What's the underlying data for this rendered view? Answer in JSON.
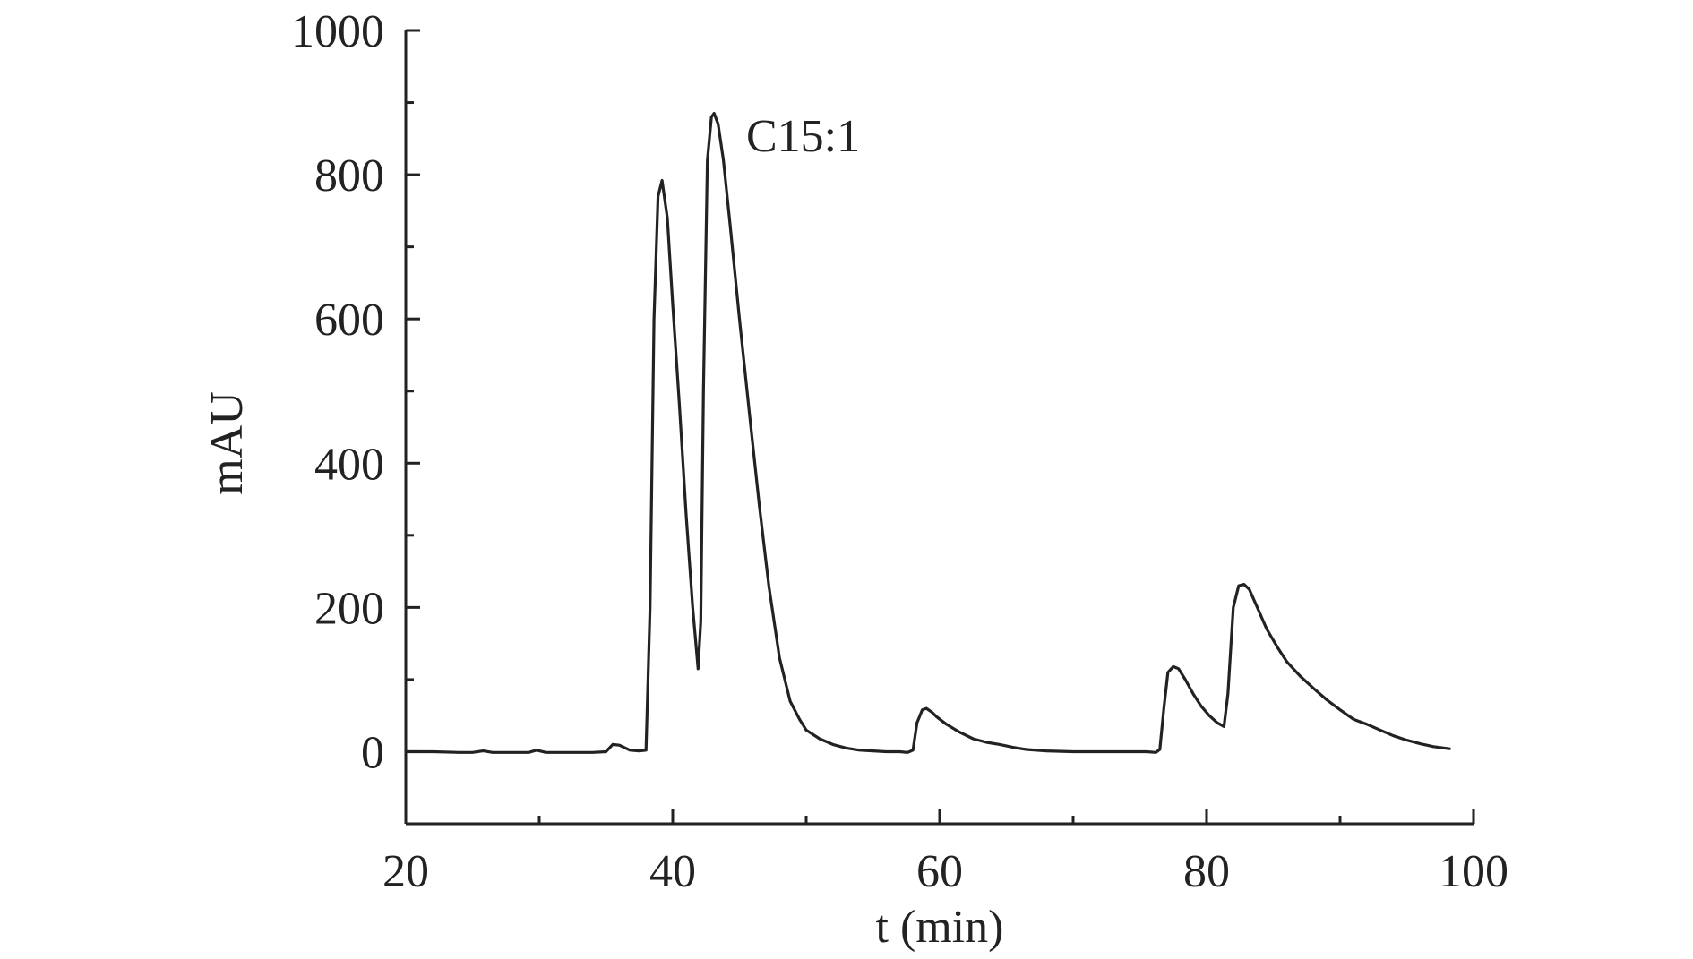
{
  "chart_data": {
    "type": "line",
    "xlabel": "t (min)",
    "ylabel": "mAU",
    "xlim": [
      20,
      100
    ],
    "ylim": [
      -100,
      1000
    ],
    "x_ticks": [
      20,
      40,
      60,
      80,
      100
    ],
    "x_minor_ticks": [
      30,
      50,
      70,
      90
    ],
    "y_ticks": [
      0,
      200,
      400,
      600,
      800,
      1000
    ],
    "y_minor_ticks": [
      -100,
      100,
      300,
      500,
      700,
      900
    ],
    "grid": false,
    "line_color": "#222222",
    "annotations": [
      {
        "text": "C15:1",
        "x": 45.5,
        "y": 855
      }
    ],
    "series": [
      {
        "x": [
          20,
          22,
          24,
          25,
          25.8,
          26.5,
          28,
          29.2,
          29.8,
          30.5,
          32,
          34,
          35,
          35.5,
          36,
          36.8,
          37.5,
          38,
          38.3,
          38.6,
          38.9,
          39.2,
          39.6,
          40,
          40.5,
          41,
          41.5,
          41.9,
          42.1,
          42.3,
          42.6,
          42.9,
          43.1,
          43.4,
          43.8,
          44.3,
          45,
          45.8,
          46.5,
          47.2,
          48,
          48.8,
          49.5,
          50,
          51,
          52,
          53,
          54,
          55,
          56,
          57,
          57.6,
          58,
          58.3,
          58.7,
          59,
          59.4,
          59.8,
          60.5,
          61.5,
          62.5,
          63.5,
          64.5,
          65.5,
          66.5,
          68,
          70,
          72,
          74,
          75.5,
          76.2,
          76.5,
          76.8,
          77.1,
          77.5,
          77.9,
          78.4,
          79,
          79.6,
          80.2,
          80.8,
          81.3,
          81.6,
          82,
          82.4,
          82.8,
          83.2,
          83.8,
          84.5,
          85.3,
          86,
          87,
          88,
          89,
          90,
          91,
          92,
          93,
          94,
          95,
          96,
          97,
          98.2
        ],
        "y": [
          0,
          0,
          -1,
          -1,
          1,
          -1,
          -1,
          -1,
          2,
          -1,
          -1,
          -1,
          0,
          10,
          9,
          2,
          1,
          2,
          200,
          600,
          770,
          792,
          740,
          620,
          480,
          330,
          200,
          115,
          180,
          500,
          820,
          880,
          885,
          870,
          820,
          730,
          600,
          460,
          340,
          230,
          130,
          70,
          45,
          30,
          18,
          10,
          5,
          2,
          1,
          0,
          0,
          -1,
          2,
          40,
          58,
          60,
          55,
          48,
          38,
          27,
          18,
          13,
          10,
          6,
          3,
          1,
          0,
          0,
          0,
          0,
          -1,
          3,
          60,
          110,
          118,
          115,
          100,
          80,
          63,
          50,
          40,
          35,
          80,
          200,
          230,
          232,
          225,
          200,
          170,
          145,
          125,
          105,
          88,
          72,
          58,
          45,
          38,
          30,
          22,
          16,
          11,
          7,
          4
        ]
      }
    ]
  }
}
